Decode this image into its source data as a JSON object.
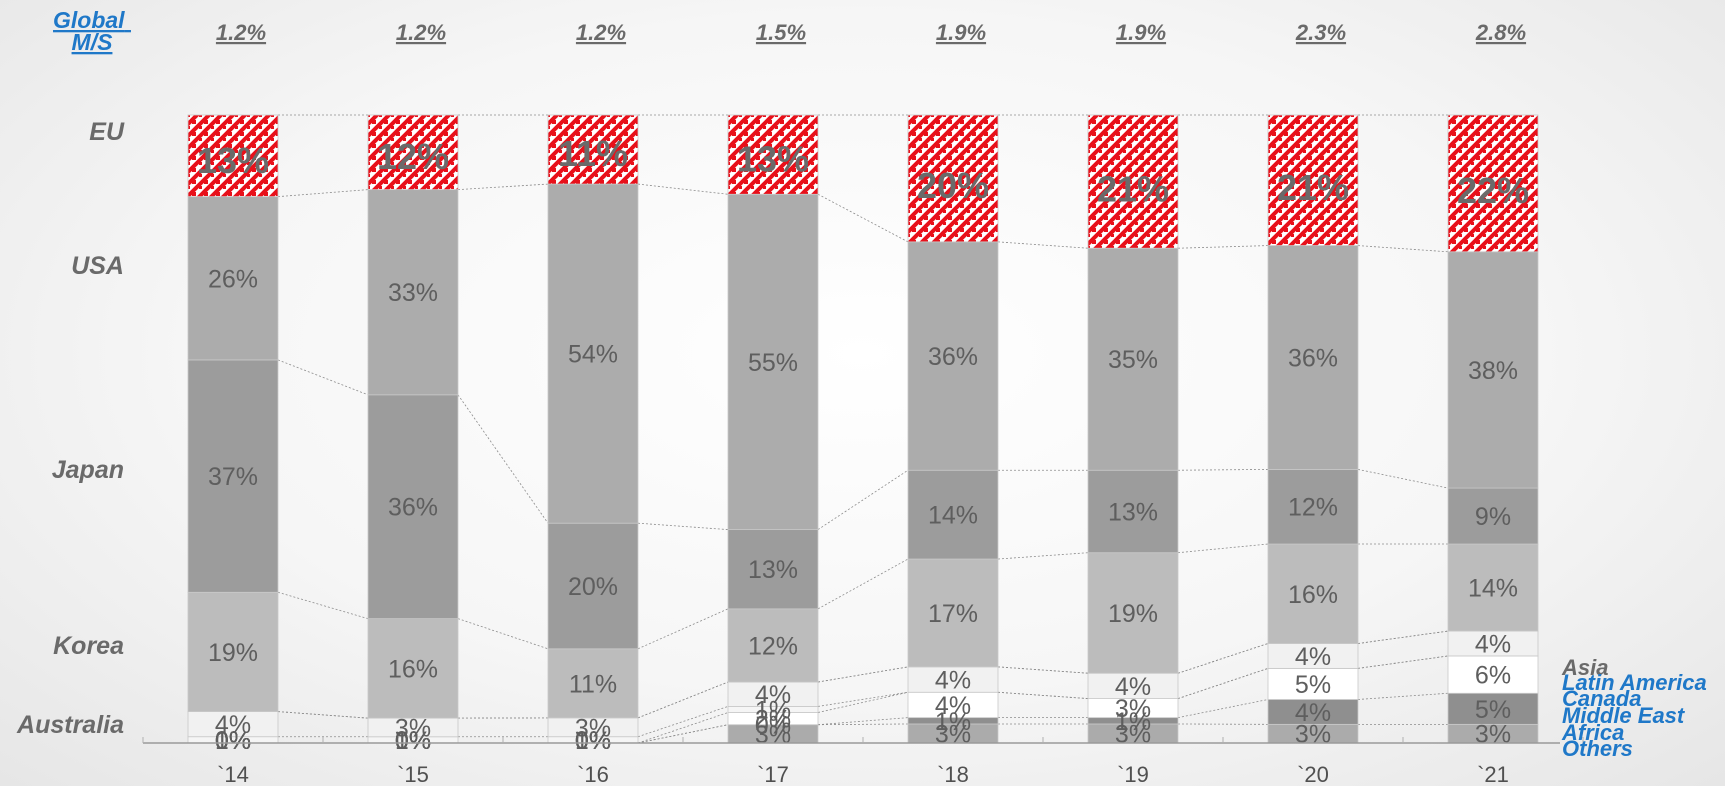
{
  "chart_data": {
    "type": "bar",
    "stacked": true,
    "categories": [
      "`14",
      "`15",
      "`16",
      "`17",
      "`18",
      "`19",
      "`20",
      "`21"
    ],
    "global_ms_label": "Global M/S",
    "global_ms": [
      "1.2%",
      "1.2%",
      "1.2%",
      "1.5%",
      "1.9%",
      "1.9%",
      "2.3%",
      "2.8%"
    ],
    "left_labels": [
      "EU",
      "USA",
      "Japan",
      "Korea",
      "Australia"
    ],
    "right_labels": [
      "Asia",
      "Latin America",
      "Canada",
      "Middle East",
      "Africa",
      "Others"
    ],
    "series": [
      {
        "name": "Others",
        "values": [
          0,
          0,
          0,
          0,
          0,
          0,
          0,
          0
        ],
        "labels": [
          "0%",
          "0%",
          "0%",
          "",
          "",
          "",
          "",
          ""
        ],
        "color": "#e8e8e8"
      },
      {
        "name": "Africa",
        "values": [
          0,
          0,
          0,
          3,
          3,
          3,
          3,
          3
        ],
        "labels": [
          "0%",
          "0%",
          "0%",
          "3%",
          "3%",
          "3%",
          "3%",
          "3%"
        ],
        "color": "#ababab"
      },
      {
        "name": "Middle East",
        "values": [
          0,
          0,
          0,
          0,
          1,
          1,
          4,
          5
        ],
        "labels": [
          "0%",
          "0%",
          "0%",
          "0%",
          "1%",
          "1%",
          "4%",
          "5%"
        ],
        "color": "#8f8f8f"
      },
      {
        "name": "Canada",
        "values": [
          0,
          0,
          0,
          2,
          4,
          3,
          5,
          6
        ],
        "labels": [
          "0%",
          "0%",
          "0%",
          "2%",
          "4%",
          "3%",
          "5%",
          "6%"
        ],
        "color": "#ffffff"
      },
      {
        "name": "Latin America",
        "values": [
          1,
          1,
          1,
          1,
          0,
          0,
          0,
          0
        ],
        "labels": [
          "1%",
          "1%",
          "1%",
          "1%",
          "",
          "",
          "",
          ""
        ],
        "color": "#f5f5f5"
      },
      {
        "name": "Asia",
        "values": [
          4,
          3,
          3,
          4,
          4,
          4,
          4,
          4
        ],
        "labels": [
          "4%",
          "3%",
          "3%",
          "4%",
          "4%",
          "4%",
          "4%",
          "4%"
        ],
        "color": "#f1f1f1"
      },
      {
        "name": "Australia",
        "values": [
          0,
          0,
          0,
          0,
          0,
          0,
          0,
          0
        ],
        "labels": [
          "",
          "",
          "",
          "",
          "",
          "",
          "",
          ""
        ],
        "color": "#eeeeee"
      },
      {
        "name": "Korea",
        "values": [
          19,
          16,
          11,
          12,
          17,
          19,
          16,
          14
        ],
        "labels": [
          "19%",
          "16%",
          "11%",
          "12%",
          "17%",
          "19%",
          "16%",
          "14%"
        ],
        "color": "#bcbcbc"
      },
      {
        "name": "Japan",
        "values": [
          37,
          36,
          20,
          13,
          14,
          13,
          12,
          9
        ],
        "labels": [
          "37%",
          "36%",
          "20%",
          "13%",
          "14%",
          "13%",
          "12%",
          "9%"
        ],
        "color": "#9c9c9c"
      },
      {
        "name": "USA",
        "values": [
          26,
          33,
          54,
          55,
          36,
          35,
          36,
          38
        ],
        "labels": [
          "26%",
          "33%",
          "54%",
          "55%",
          "36%",
          "35%",
          "36%",
          "38%"
        ],
        "color": "#acacac"
      },
      {
        "name": "EU",
        "values": [
          13,
          12,
          11,
          13,
          20,
          21,
          21,
          22
        ],
        "labels": [
          "13%",
          "12%",
          "11%",
          "13%",
          "20%",
          "21%",
          "21%",
          "22%"
        ],
        "color": "#e8101a"
      }
    ],
    "colors": {
      "eu": "#e8101a",
      "link": "#1f78c8",
      "eu_label": "#c00000"
    },
    "grid": false,
    "legend": "side-labels"
  }
}
